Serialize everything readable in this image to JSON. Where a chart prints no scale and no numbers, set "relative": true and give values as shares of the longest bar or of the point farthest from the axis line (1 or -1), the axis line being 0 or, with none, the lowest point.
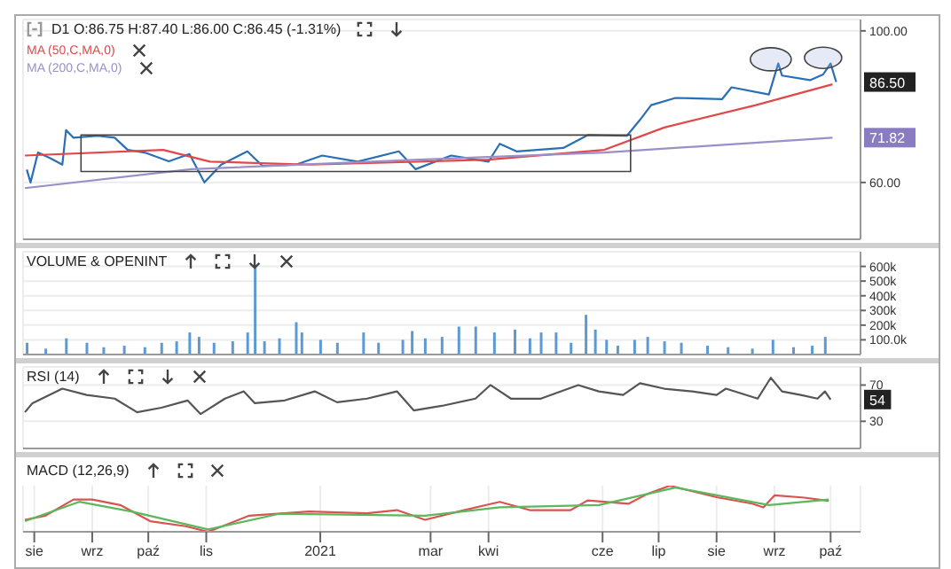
{
  "chart_data": [
    {
      "type": "line",
      "title": "D1 O:86.75 H:87.40 L:86.00 C:86.45 (-1.31%)",
      "xlim": [
        "2020-07-26",
        "2021-10-17"
      ],
      "xticks": [
        {
          "value": "2020-08-01",
          "label": null
        },
        {
          "value": "2020-09-01",
          "label": null
        },
        {
          "value": "2020-10-01",
          "label": null
        },
        {
          "value": "2020-11-01",
          "label": null
        },
        {
          "value": "2021-01-01",
          "label": null
        },
        {
          "value": "2021-03-01",
          "label": null
        },
        {
          "value": "2021-04-01",
          "label": null
        },
        {
          "value": "2021-06-01",
          "label": null
        },
        {
          "value": "2021-07-01",
          "label": null
        },
        {
          "value": "2021-08-01",
          "label": null
        },
        {
          "value": "2021-09-01",
          "label": null
        },
        {
          "value": "2021-10-01",
          "label": null
        }
      ],
      "tick_labels": "y",
      "ylim": [
        45,
        103
      ],
      "yticks": [
        {
          "value": 60,
          "label": "60.00"
        },
        {
          "value": 100,
          "label": "100.00"
        }
      ],
      "grid": true,
      "legend": "top left",
      "annotations": [
        {
          "text": "86.50",
          "y": 86.5
        },
        {
          "text": "71.82",
          "y": 71.82
        }
      ],
      "series": [
        {
          "color": "#2a6fb5",
          "x": [
            "2020-07-28",
            "2020-07-30",
            "2020-08-03",
            "2020-08-10",
            "2020-08-16",
            "2020-08-18",
            "2020-08-22",
            "2020-09-04",
            "2020-09-13",
            "2020-09-20",
            "2020-09-29",
            "2020-10-12",
            "2020-10-23",
            "2020-10-31",
            "2020-11-09",
            "2020-11-23",
            "2020-12-01",
            "2020-12-19",
            "2021-01-02",
            "2021-01-21",
            "2021-02-12",
            "2021-02-21",
            "2021-03-12",
            "2021-04-01",
            "2021-04-07",
            "2021-04-16",
            "2021-05-11",
            "2021-05-24",
            "2021-06-14",
            "2021-06-21",
            "2021-06-27",
            "2021-07-10",
            "2021-08-04",
            "2021-08-09",
            "2021-08-29",
            "2021-09-03",
            "2021-09-05",
            "2021-09-20",
            "2021-09-27",
            "2021-10-01",
            "2021-10-04"
          ],
          "values": [
            63.4,
            60.0,
            67.9,
            66.3,
            64.7,
            73.8,
            71.8,
            72.3,
            71.8,
            68.6,
            67.9,
            65.6,
            67.5,
            60.0,
            64.7,
            68.2,
            64.4,
            64.7,
            67.1,
            65.5,
            68.2,
            63.5,
            67.1,
            65.5,
            70.2,
            68.2,
            69.1,
            72.5,
            72.3,
            76.5,
            80.4,
            82.3,
            82.0,
            85.1,
            83.2,
            91.4,
            88.2,
            87.0,
            88.5,
            91.4,
            86.5
          ]
        },
        {
          "name": "MA (50,C,MA,0)",
          "color": "#e0484a",
          "x": [
            "2020-07-27",
            "2020-10-09",
            "2020-11-03",
            "2020-12-27",
            "2021-04-01",
            "2021-06-02",
            "2021-07-04",
            "2021-08-22",
            "2021-10-02"
          ],
          "values": [
            67.1,
            68.6,
            65.5,
            64.7,
            66.0,
            68.6,
            74.5,
            80.4,
            85.9
          ]
        },
        {
          "name": "MA (200,C,MA,0)",
          "color": "#9a8fc8",
          "x": [
            "2020-07-27",
            "2020-10-24",
            "2021-02-23",
            "2021-06-02",
            "2021-10-02"
          ],
          "values": [
            58.5,
            63.5,
            66.0,
            67.9,
            71.8
          ]
        }
      ]
    },
    {
      "type": "bar",
      "title": "VOLUME & OPENINT",
      "xlim": [
        "2020-07-26",
        "2021-10-17"
      ],
      "xticks": [
        {
          "value": "2020-08-01",
          "label": null
        },
        {
          "value": "2020-09-01",
          "label": null
        },
        {
          "value": "2020-10-01",
          "label": null
        },
        {
          "value": "2020-11-01",
          "label": null
        },
        {
          "value": "2021-01-01",
          "label": null
        },
        {
          "value": "2021-03-01",
          "label": null
        },
        {
          "value": "2021-04-01",
          "label": null
        },
        {
          "value": "2021-06-01",
          "label": null
        },
        {
          "value": "2021-07-01",
          "label": null
        },
        {
          "value": "2021-08-01",
          "label": null
        },
        {
          "value": "2021-09-01",
          "label": null
        },
        {
          "value": "2021-10-01",
          "label": null
        }
      ],
      "tick_labels": "y",
      "ylim": [
        0,
        700
      ],
      "yticks": [
        {
          "value": 100,
          "label": "100.0k"
        },
        {
          "value": 200,
          "label": "200k"
        },
        {
          "value": 300,
          "label": "300k"
        },
        {
          "value": 400,
          "label": "400k"
        },
        {
          "value": 500,
          "label": "500k"
        },
        {
          "value": 600,
          "label": "600k"
        }
      ],
      "grid": true,
      "series": [
        {
          "color": "#5b9bd5",
          "x": [
            "2020-07-28",
            "2020-08-07",
            "2020-08-18",
            "2020-08-29",
            "2020-09-07",
            "2020-09-18",
            "2020-09-29",
            "2020-10-08",
            "2020-10-16",
            "2020-10-23",
            "2020-10-28",
            "2020-11-05",
            "2020-11-15",
            "2020-11-23",
            "2020-11-27",
            "2020-12-02",
            "2020-12-10",
            "2020-12-19",
            "2020-12-22",
            "2021-01-01",
            "2021-01-10",
            "2021-01-24",
            "2021-02-01",
            "2021-02-14",
            "2021-02-19",
            "2021-02-26",
            "2021-03-07",
            "2021-03-16",
            "2021-03-25",
            "2021-04-04",
            "2021-04-15",
            "2021-04-23",
            "2021-04-29",
            "2021-05-07",
            "2021-05-15",
            "2021-05-23",
            "2021-05-28",
            "2021-06-03",
            "2021-06-09",
            "2021-06-18",
            "2021-06-25",
            "2021-07-04",
            "2021-07-13",
            "2021-07-27",
            "2021-08-07",
            "2021-08-20",
            "2021-08-31",
            "2021-09-11",
            "2021-09-21",
            "2021-09-28"
          ],
          "values": [
            80,
            40,
            110,
            80,
            50,
            60,
            50,
            80,
            90,
            150,
            120,
            80,
            90,
            150,
            600,
            90,
            110,
            220,
            150,
            100,
            80,
            150,
            80,
            100,
            160,
            110,
            120,
            190,
            190,
            150,
            170,
            110,
            150,
            150,
            80,
            270,
            170,
            100,
            60,
            100,
            120,
            90,
            80,
            60,
            50,
            40,
            100,
            50,
            60,
            120
          ]
        }
      ]
    },
    {
      "type": "line",
      "title": "RSI (14)",
      "xlim": [
        "2020-07-26",
        "2021-10-17"
      ],
      "xticks": [
        {
          "value": "2020-08-01",
          "label": null
        },
        {
          "value": "2020-09-01",
          "label": null
        },
        {
          "value": "2020-10-01",
          "label": null
        },
        {
          "value": "2020-11-01",
          "label": null
        },
        {
          "value": "2021-01-01",
          "label": null
        },
        {
          "value": "2021-03-01",
          "label": null
        },
        {
          "value": "2021-04-01",
          "label": null
        },
        {
          "value": "2021-06-01",
          "label": null
        },
        {
          "value": "2021-07-01",
          "label": null
        },
        {
          "value": "2021-08-01",
          "label": null
        },
        {
          "value": "2021-09-01",
          "label": null
        },
        {
          "value": "2021-10-01",
          "label": null
        }
      ],
      "tick_labels": "y",
      "ylim": [
        0,
        90
      ],
      "yticks": [
        30,
        70
      ],
      "grid": true,
      "annotations": [
        {
          "text": "54",
          "y": 54
        }
      ],
      "series": [
        {
          "color": "#555555",
          "x": [
            "2020-07-27",
            "2020-07-31",
            "2020-08-16",
            "2020-08-29",
            "2020-09-13",
            "2020-09-25",
            "2020-10-08",
            "2020-10-22",
            "2020-10-29",
            "2020-11-11",
            "2020-11-21",
            "2020-11-27",
            "2020-12-13",
            "2020-12-29",
            "2021-01-10",
            "2021-01-26",
            "2021-02-11",
            "2021-02-20",
            "2021-03-07",
            "2021-03-25",
            "2021-04-02",
            "2021-04-13",
            "2021-04-29",
            "2021-05-19",
            "2021-05-30",
            "2021-06-12",
            "2021-06-21",
            "2021-07-04",
            "2021-07-19",
            "2021-08-01",
            "2021-08-06",
            "2021-08-23",
            "2021-08-30",
            "2021-09-05",
            "2021-09-15",
            "2021-09-24",
            "2021-09-28",
            "2021-10-01"
          ],
          "values": [
            40,
            50,
            66,
            59,
            55,
            40,
            45,
            53,
            38,
            55,
            63,
            50,
            53,
            63,
            51,
            55,
            63,
            42,
            47,
            55,
            70,
            55,
            55,
            70,
            63,
            59,
            72,
            66,
            63,
            59,
            66,
            55,
            78,
            63,
            59,
            55,
            63,
            54
          ]
        }
      ]
    },
    {
      "type": "line",
      "title": "MACD (12,26,9)",
      "relative": true,
      "xlim": [
        "2020-07-26",
        "2021-10-17"
      ],
      "xticks": [
        {
          "value": "2020-08-01",
          "label": "sie"
        },
        {
          "value": "2020-09-01",
          "label": "wrz"
        },
        {
          "value": "2020-10-01",
          "label": "paź"
        },
        {
          "value": "2020-11-01",
          "label": "lis"
        },
        {
          "value": "2021-01-01",
          "label": "2021"
        },
        {
          "value": "2021-03-01",
          "label": "mar"
        },
        {
          "value": "2021-04-01",
          "label": "kwi"
        },
        {
          "value": "2021-06-01",
          "label": "cze"
        },
        {
          "value": "2021-07-01",
          "label": "lip"
        },
        {
          "value": "2021-08-01",
          "label": "sie"
        },
        {
          "value": "2021-09-01",
          "label": "wrz"
        },
        {
          "value": "2021-10-01",
          "label": "paź"
        }
      ],
      "tick_labels": "x",
      "grid": "x",
      "series": [
        {
          "color": "#d9534f",
          "x": [
            "2020-07-27",
            "2020-08-07",
            "2020-08-22",
            "2020-09-01",
            "2020-09-16",
            "2020-10-02",
            "2020-10-21",
            "2020-11-02",
            "2020-11-24",
            "2020-12-26",
            "2021-01-26",
            "2021-02-11",
            "2021-02-26",
            "2021-03-16",
            "2021-04-07",
            "2021-04-23",
            "2021-05-15",
            "2021-05-24",
            "2021-06-15",
            "2021-06-25",
            "2021-07-07",
            "2021-08-01",
            "2021-08-20",
            "2021-08-26",
            "2021-09-01",
            "2021-09-17",
            "2021-09-30"
          ],
          "values": [
            0.26,
            0.35,
            0.7,
            0.7,
            0.58,
            0.23,
            0.12,
            0,
            0.35,
            0.44,
            0.4,
            0.47,
            0.26,
            0.44,
            0.65,
            0.47,
            0.47,
            0.68,
            0.61,
            0.82,
            1,
            0.75,
            0.61,
            0.53,
            0.79,
            0.74,
            0.67
          ]
        },
        {
          "color": "#5cb85c",
          "x": [
            "2020-07-27",
            "2020-08-25",
            "2020-09-22",
            "2020-11-02",
            "2020-12-10",
            "2021-02-26",
            "2021-04-07",
            "2021-05-30",
            "2021-07-10",
            "2021-08-29",
            "2021-09-30"
          ],
          "values": [
            0.23,
            0.65,
            0.44,
            0.05,
            0.39,
            0.35,
            0.53,
            0.58,
            0.96,
            0.58,
            0.7
          ]
        }
      ]
    }
  ]
}
